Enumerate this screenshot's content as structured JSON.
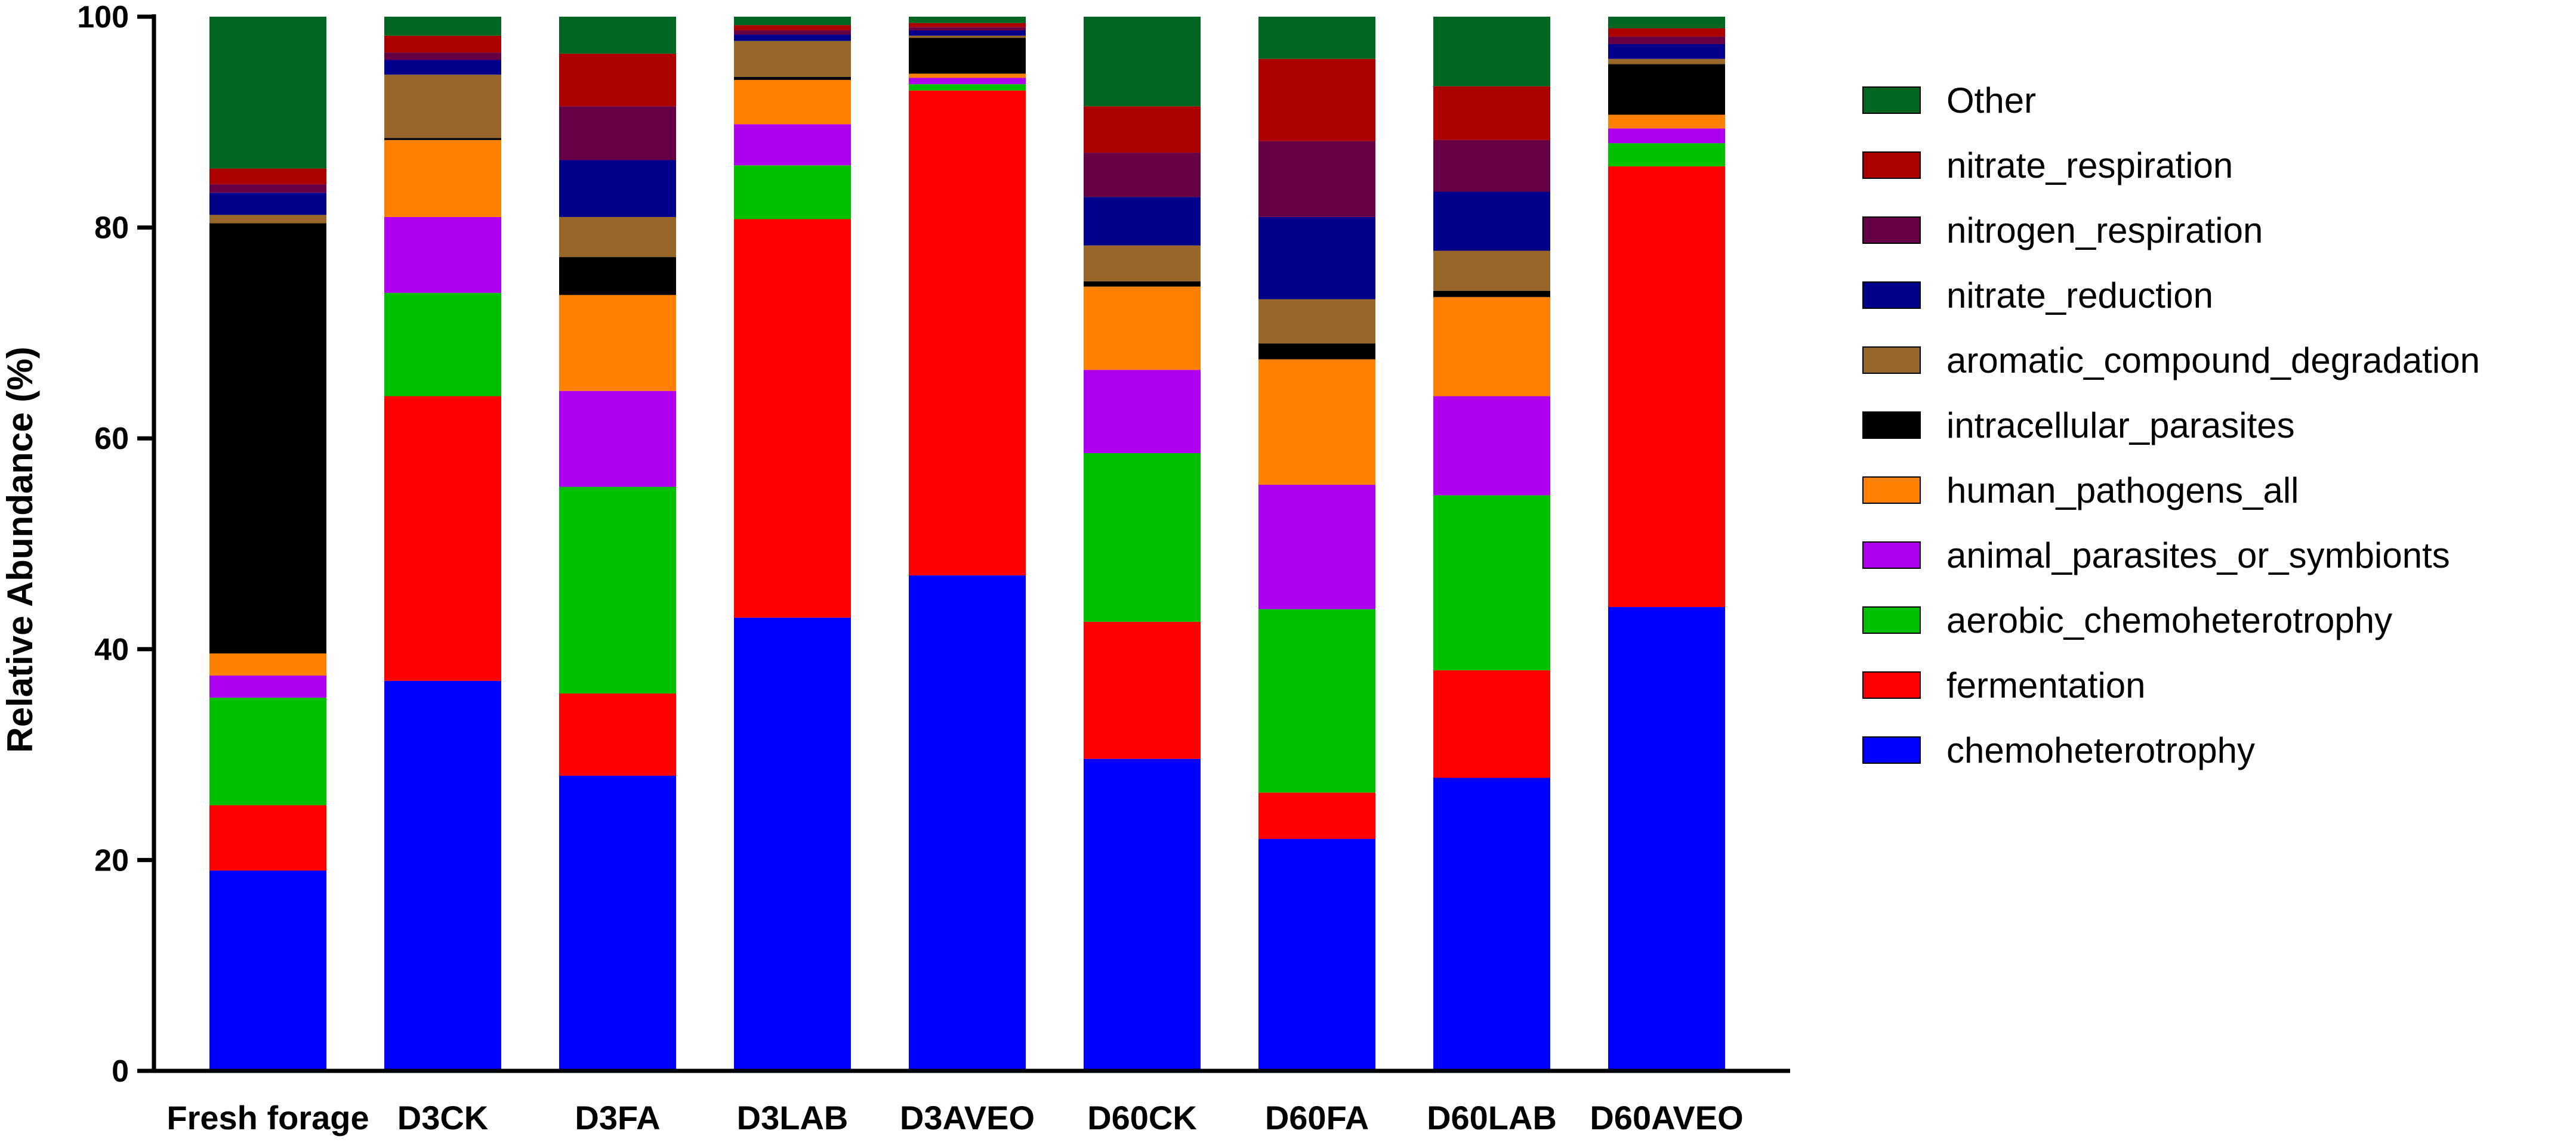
{
  "chart_data": {
    "type": "bar",
    "stacked": true,
    "title": "",
    "xlabel": "",
    "ylabel": "Relative Abundance (%)",
    "ylim": [
      0,
      100
    ],
    "yticks": [
      0,
      20,
      40,
      60,
      80,
      100
    ],
    "grid": false,
    "legend_position": "right",
    "categories": [
      "Fresh forage",
      "D3CK",
      "D3FA",
      "D3LAB",
      "D3AVEO",
      "D60CK",
      "D60FA",
      "D60LAB",
      "D60AVEO"
    ],
    "series": [
      {
        "name": "chemoheterotrophy",
        "color": "#0000ff",
        "values": [
          19.0,
          37.0,
          28.0,
          43.0,
          47.0,
          29.6,
          22.0,
          27.8,
          44.0
        ]
      },
      {
        "name": "fermentation",
        "color": "#ff0000",
        "values": [
          6.2,
          27.0,
          7.8,
          37.8,
          46.0,
          13.0,
          4.4,
          10.2,
          41.8
        ]
      },
      {
        "name": "aerobic_chemoheterotrophy",
        "color": "#00c000",
        "values": [
          10.2,
          9.8,
          19.6,
          5.1,
          0.6,
          16.0,
          17.4,
          16.6,
          2.2
        ]
      },
      {
        "name": "animal_parasites_or_symbionts",
        "color": "#b000f0",
        "values": [
          2.1,
          7.2,
          9.1,
          3.9,
          0.6,
          7.9,
          11.8,
          9.4,
          1.4
        ]
      },
      {
        "name": "human_pathogens_all",
        "color": "#ff8000",
        "values": [
          2.1,
          7.3,
          9.1,
          4.2,
          0.4,
          7.9,
          11.9,
          9.4,
          1.3
        ]
      },
      {
        "name": "intracellular_parasites",
        "color": "#000000",
        "values": [
          40.8,
          0.2,
          3.6,
          0.3,
          3.4,
          0.5,
          1.5,
          0.6,
          4.8
        ]
      },
      {
        "name": "aromatic_compound_degradation",
        "color": "#99662a",
        "values": [
          0.8,
          6.0,
          3.8,
          3.4,
          0.2,
          3.4,
          4.2,
          3.8,
          0.5
        ]
      },
      {
        "name": "nitrate_reduction",
        "color": "#00008b",
        "values": [
          2.1,
          1.4,
          5.4,
          0.6,
          0.5,
          4.6,
          7.8,
          5.6,
          1.4
        ]
      },
      {
        "name": "nitrogen_respiration",
        "color": "#660044",
        "values": [
          0.8,
          0.7,
          5.1,
          0.4,
          0.3,
          4.2,
          7.2,
          4.9,
          0.7
        ]
      },
      {
        "name": "nitrate_respiration",
        "color": "#aa0000",
        "values": [
          1.5,
          1.6,
          5.0,
          0.5,
          0.4,
          4.4,
          7.8,
          5.1,
          0.8
        ]
      },
      {
        "name": "Other",
        "color": "#006622",
        "values": [
          14.4,
          1.8,
          3.5,
          0.8,
          0.6,
          8.5,
          4.0,
          6.6,
          1.1
        ]
      }
    ]
  }
}
